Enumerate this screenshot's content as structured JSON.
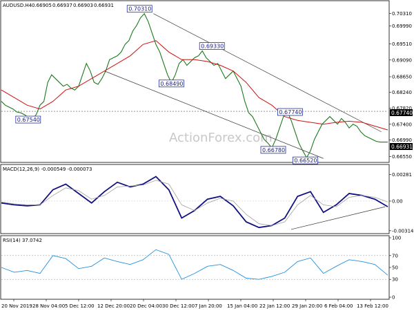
{
  "chart_data": [
    {
      "type": "line",
      "panel": "price",
      "title": "AUDUSD.H4",
      "ohlc": {
        "open": "0.66905",
        "high": "0.66937",
        "low": "0.66903",
        "close": "0.66931"
      },
      "watermark": "ActionForex.com",
      "y_ticks": [
        "0.70310",
        "0.69990",
        "0.69510",
        "0.69090",
        "0.68650",
        "0.68240",
        "0.67820",
        "0.67400",
        "0.66990",
        "0.66550"
      ],
      "price_tag": "0.66931",
      "level_tag": "0.67740",
      "annotations": [
        "0.70310",
        "0.69330",
        "0.68490",
        "0.67540",
        "0.67740",
        "0.66780",
        "0.66520"
      ],
      "ylim": [
        0.6645,
        0.7045
      ],
      "series": [
        {
          "name": "price",
          "color": "#1a7a1a",
          "x": [
            0,
            3,
            6,
            9,
            12,
            15,
            18,
            21,
            24,
            27,
            30,
            33,
            36,
            39,
            42,
            45,
            48,
            51,
            54,
            57,
            60,
            63,
            66,
            69,
            72,
            75,
            78,
            81,
            84,
            87,
            90,
            93,
            96,
            99,
            102,
            105,
            108,
            111,
            114,
            117,
            120,
            123,
            126,
            129,
            132,
            135,
            138,
            141,
            144,
            147,
            150,
            153,
            156,
            159,
            162,
            165,
            168,
            171,
            174,
            177,
            180,
            183,
            186,
            189,
            192,
            195,
            198,
            201,
            204,
            207,
            210,
            213,
            216,
            219,
            222,
            225,
            228,
            231,
            234,
            237,
            240,
            243,
            246,
            249,
            252,
            255,
            258,
            261,
            264,
            267,
            270,
            273,
            276,
            279,
            282,
            285,
            288,
            291,
            294,
            297,
            300
          ],
          "y": [
            0.68,
            0.679,
            0.6785,
            0.678,
            0.6772,
            0.677,
            0.6765,
            0.6758,
            0.6754,
            0.6765,
            0.679,
            0.68,
            0.685,
            0.687,
            0.686,
            0.685,
            0.684,
            0.6845,
            0.6835,
            0.683,
            0.684,
            0.687,
            0.69,
            0.688,
            0.685,
            0.6845,
            0.686,
            0.688,
            0.691,
            0.6915,
            0.692,
            0.693,
            0.695,
            0.696,
            0.6985,
            0.7,
            0.702,
            0.7031,
            0.701,
            0.698,
            0.695,
            0.693,
            0.69,
            0.687,
            0.6849,
            0.687,
            0.69,
            0.691,
            0.6895,
            0.6905,
            0.6915,
            0.692,
            0.6933,
            0.6915,
            0.6905,
            0.6895,
            0.69,
            0.688,
            0.686,
            0.687,
            0.688,
            0.686,
            0.684,
            0.68,
            0.677,
            0.676,
            0.674,
            0.672,
            0.67,
            0.669,
            0.6678,
            0.67,
            0.673,
            0.676,
            0.6774,
            0.675,
            0.672,
            0.669,
            0.667,
            0.6652,
            0.667,
            0.67,
            0.672,
            0.674,
            0.675,
            0.676,
            0.675,
            0.674,
            0.6755,
            0.6745,
            0.673,
            0.674,
            0.6735,
            0.672,
            0.671,
            0.6705,
            0.67,
            0.6695,
            0.6693,
            0.6693,
            0.6693
          ]
        },
        {
          "name": "moving average",
          "color": "#d01010",
          "x": [
            0,
            10,
            20,
            30,
            40,
            50,
            60,
            70,
            80,
            90,
            100,
            110,
            120,
            130,
            140,
            150,
            160,
            170,
            180,
            190,
            200,
            210,
            220,
            230,
            240,
            250,
            260,
            270,
            280,
            290,
            300
          ],
          "y": [
            0.683,
            0.681,
            0.679,
            0.678,
            0.68,
            0.683,
            0.684,
            0.686,
            0.688,
            0.69,
            0.692,
            0.695,
            0.696,
            0.693,
            0.691,
            0.691,
            0.6905,
            0.6895,
            0.688,
            0.685,
            0.681,
            0.679,
            0.676,
            0.675,
            0.6745,
            0.674,
            0.6745,
            0.6748,
            0.6745,
            0.6735,
            0.6725
          ]
        }
      ],
      "channel_lines": [
        {
          "x": [
            118,
            295
          ],
          "y": [
            0.7031,
            0.672
          ]
        },
        {
          "x": [
            80,
            250
          ],
          "y": [
            0.688,
            0.665
          ]
        }
      ],
      "horizontal_level": 0.6774
    },
    {
      "type": "line",
      "panel": "macd",
      "title": "MACD(12,26,9) -0.000549 -0.000073",
      "y_ticks": [
        "0.00281",
        "0.00",
        "-0.003141"
      ],
      "ylim": [
        -0.0033,
        0.003
      ],
      "series": [
        {
          "name": "MACD",
          "color": "#101080",
          "x": [
            0,
            10,
            20,
            30,
            40,
            50,
            60,
            70,
            80,
            90,
            100,
            110,
            120,
            130,
            140,
            150,
            160,
            170,
            180,
            190,
            200,
            210,
            220,
            230,
            240,
            250,
            260,
            270,
            280,
            290,
            300
          ],
          "y": [
            -0.0002,
            -0.0004,
            -0.0005,
            -0.0004,
            0.0012,
            0.0018,
            0.0008,
            -0.0002,
            0.001,
            0.002,
            0.0015,
            0.0018,
            0.0026,
            0.0012,
            -0.0018,
            -0.001,
            0.0002,
            0.0005,
            -0.0005,
            -0.0022,
            -0.0028,
            -0.0026,
            -0.0018,
            0.0005,
            0.001,
            -0.0012,
            -0.0004,
            0.0008,
            0.0006,
            0.0002,
            -0.0006
          ]
        },
        {
          "name": "signal",
          "color": "#a0a0a0",
          "x": [
            0,
            10,
            20,
            30,
            40,
            50,
            60,
            70,
            80,
            90,
            100,
            110,
            120,
            130,
            140,
            150,
            160,
            170,
            180,
            190,
            200,
            210,
            220,
            230,
            240,
            250,
            260,
            270,
            280,
            290,
            300
          ],
          "y": [
            -0.0001,
            -0.0003,
            -0.0004,
            -0.0004,
            0.0006,
            0.0014,
            0.0011,
            0.0002,
            0.0006,
            0.0015,
            0.0016,
            0.0017,
            0.0022,
            0.0018,
            -0.0004,
            -0.001,
            -0.0002,
            0.0003,
            0.0,
            -0.0014,
            -0.0024,
            -0.0026,
            -0.0022,
            -0.0004,
            0.0006,
            -0.0004,
            -0.0006,
            0.0004,
            0.0006,
            0.0004,
            -0.0001
          ]
        }
      ],
      "trend_line": {
        "x": [
          225,
          298
        ],
        "y": [
          -0.003,
          -0.0006
        ]
      }
    },
    {
      "type": "line",
      "panel": "rsi",
      "title": "RSI(14) 37.0742",
      "y_ticks": [
        "100",
        "70",
        "50",
        "30",
        "0"
      ],
      "ylim": [
        0,
        100
      ],
      "series": [
        {
          "name": "RSI",
          "color": "#2090e0",
          "x": [
            0,
            10,
            20,
            30,
            40,
            50,
            60,
            70,
            80,
            90,
            100,
            110,
            120,
            130,
            140,
            150,
            160,
            170,
            180,
            190,
            200,
            210,
            220,
            230,
            240,
            250,
            260,
            270,
            280,
            290,
            300
          ],
          "y": [
            50,
            42,
            45,
            40,
            70,
            65,
            48,
            52,
            66,
            60,
            55,
            63,
            80,
            72,
            30,
            40,
            52,
            55,
            45,
            32,
            30,
            35,
            42,
            60,
            66,
            40,
            52,
            63,
            60,
            55,
            37
          ]
        }
      ]
    }
  ],
  "x_axis_labels": [
    "20 Nov 2019",
    "28 Nov 04:00",
    "5 Dec 12:00",
    "12 Dec 20:00",
    "20 Dec 04:00",
    "30 Dec 12:00",
    "7 Jan 20:00",
    "15 Jan 04:00",
    "22 Jan 12:00",
    "29 Jan 20:00",
    "6 Feb 04:00",
    "13 Feb 12:00"
  ],
  "colors": {
    "price": "#1a7a1a",
    "ma": "#d01010",
    "macd": "#101080",
    "signal": "#a0a0a0",
    "rsi": "#2090e0",
    "annotation": "#202080",
    "tag_bg": "#000000"
  }
}
